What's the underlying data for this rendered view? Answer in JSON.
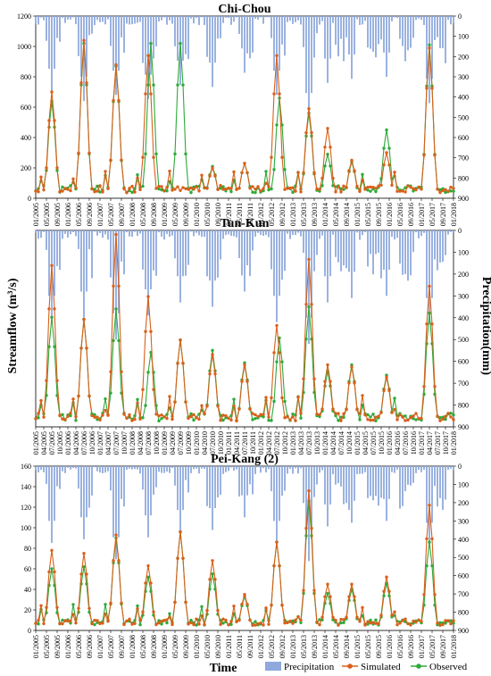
{
  "figure": {
    "ylabel_left": "Streamflow (m³/s)",
    "ylabel_right": "Precipitation(mm)",
    "xlabel": "Time",
    "legend": [
      {
        "name": "Precipitation",
        "type": "bar",
        "color": "#8fa9dc"
      },
      {
        "name": "Simulated",
        "type": "line",
        "color": "#d9601a"
      },
      {
        "name": "Observed",
        "type": "line",
        "color": "#2eaa3a"
      }
    ]
  },
  "chart_data": [
    {
      "type": "line",
      "title": "Chi-Chou",
      "ylim": [
        0,
        1200
      ],
      "yticks": [
        0,
        200,
        400,
        600,
        800,
        1000,
        1200
      ],
      "precip_ylim": [
        900,
        0
      ],
      "precip_ticks": [
        0,
        100,
        200,
        300,
        400,
        500,
        600,
        700,
        800,
        900
      ],
      "x_tick_labels": [
        "01/2005",
        "05/2005",
        "09/2005",
        "01/2006",
        "05/2006",
        "09/2006",
        "01/2007",
        "05/2007",
        "09/2007",
        "01/2008",
        "05/2008",
        "09/2008",
        "01/2009",
        "05/2009",
        "09/2009",
        "01/2010",
        "05/2010",
        "09/2010",
        "01/2011",
        "05/2011",
        "09/2011",
        "01/2012",
        "05/2012",
        "09/2012",
        "01/2013",
        "05/2013",
        "09/2013",
        "01/2014",
        "05/2014",
        "09/2014",
        "01/2015",
        "05/2015",
        "09/2015",
        "01/2016",
        "05/2016",
        "09/2016",
        "01/2017",
        "05/2017",
        "09/2017",
        "01/2018"
      ],
      "peaks": {
        "simulated": [
          [
            6,
            700
          ],
          [
            18,
            1040
          ],
          [
            30,
            880
          ],
          [
            42,
            940
          ],
          [
            55,
            70
          ],
          [
            66,
            200
          ],
          [
            78,
            230
          ],
          [
            90,
            940
          ],
          [
            102,
            590
          ],
          [
            109,
            460
          ],
          [
            118,
            250
          ],
          [
            131,
            300
          ],
          [
            147,
            990
          ]
        ],
        "observed": [
          [
            6,
            640
          ],
          [
            18,
            1020
          ],
          [
            30,
            870
          ],
          [
            43,
            1020
          ],
          [
            54,
            1020
          ],
          [
            66,
            210
          ],
          [
            78,
            230
          ],
          [
            91,
            660
          ],
          [
            102,
            560
          ],
          [
            109,
            290
          ],
          [
            118,
            240
          ],
          [
            131,
            450
          ],
          [
            147,
            1010
          ]
        ]
      },
      "precip_peaks": [
        [
          6,
          380
        ],
        [
          18,
          420
        ],
        [
          30,
          390
        ],
        [
          42,
          410
        ],
        [
          54,
          340
        ],
        [
          66,
          350
        ],
        [
          78,
          280
        ],
        [
          90,
          390
        ],
        [
          102,
          500
        ],
        [
          109,
          330
        ],
        [
          118,
          310
        ],
        [
          131,
          300
        ],
        [
          147,
          430
        ]
      ]
    },
    {
      "type": "line",
      "title": "Tun-Kun",
      "ylim": [
        0,
        95
      ],
      "yticks": [],
      "precip_ylim": [
        900,
        0
      ],
      "precip_ticks": [
        0,
        100,
        200,
        300,
        400,
        500,
        600,
        700,
        800,
        900
      ],
      "x_tick_labels": [
        "01/2005",
        "04/2005",
        "07/2005",
        "10/2005",
        "01/2006",
        "04/2006",
        "07/2006",
        "10/2006",
        "01/2007",
        "04/2007",
        "07/2007",
        "10/2007",
        "01/2008",
        "04/2008",
        "07/2008",
        "10/2008",
        "01/2009",
        "04/2009",
        "07/2009",
        "10/2009",
        "01/2010",
        "04/2010",
        "07/2010",
        "10/2010",
        "01/2011",
        "04/2011",
        "07/2011",
        "10/2011",
        "01/2012",
        "04/2012",
        "07/2012",
        "10/2012",
        "01/2013",
        "04/2013",
        "07/2013",
        "10/2013",
        "01/2014",
        "04/2014",
        "07/2014",
        "10/2014",
        "01/2015",
        "04/2015",
        "07/2015",
        "10/2015",
        "01/2016",
        "04/2016",
        "07/2016",
        "10/2016",
        "01/2017",
        "04/2017",
        "07/2017",
        "10/2017",
        "01/2018"
      ],
      "peaks": {
        "simulated": [
          [
            6,
            78
          ],
          [
            18,
            52
          ],
          [
            30,
            93
          ],
          [
            42,
            63
          ],
          [
            54,
            42
          ],
          [
            66,
            35
          ],
          [
            78,
            30
          ],
          [
            90,
            49
          ],
          [
            102,
            81
          ],
          [
            109,
            30
          ],
          [
            118,
            29
          ],
          [
            131,
            24
          ],
          [
            147,
            68
          ]
        ],
        "observed": [
          [
            6,
            53
          ],
          [
            18,
            52
          ],
          [
            30,
            57
          ],
          [
            43,
            36
          ],
          [
            54,
            42
          ],
          [
            66,
            37
          ],
          [
            78,
            31
          ],
          [
            91,
            43
          ],
          [
            102,
            58
          ],
          [
            109,
            27
          ],
          [
            118,
            30
          ],
          [
            131,
            25
          ],
          [
            147,
            55
          ]
        ]
      },
      "precip_peaks": [
        [
          6,
          420
        ],
        [
          18,
          400
        ],
        [
          30,
          500
        ],
        [
          42,
          390
        ],
        [
          54,
          330
        ],
        [
          66,
          350
        ],
        [
          78,
          280
        ],
        [
          90,
          420
        ],
        [
          102,
          520
        ],
        [
          109,
          330
        ],
        [
          118,
          310
        ],
        [
          131,
          300
        ],
        [
          147,
          430
        ]
      ]
    },
    {
      "type": "line",
      "title": "Pei-Kang (2)",
      "ylim": [
        0,
        160
      ],
      "yticks": [
        0,
        20,
        40,
        60,
        80,
        100,
        120,
        140,
        160
      ],
      "precip_ylim": [
        900,
        0
      ],
      "precip_ticks": [
        0,
        100,
        200,
        300,
        400,
        500,
        600,
        700,
        800,
        900
      ],
      "x_tick_labels": [
        "01/2005",
        "05/2005",
        "09/2005",
        "01/2006",
        "05/2006",
        "09/2006",
        "01/2007",
        "05/2007",
        "09/2007",
        "01/2008",
        "05/2008",
        "09/2008",
        "01/2009",
        "05/2009",
        "09/2009",
        "01/2010",
        "05/2010",
        "09/2010",
        "01/2011",
        "05/2011",
        "09/2011",
        "01/2012",
        "05/2012",
        "09/2012",
        "01/2013",
        "05/2013",
        "09/2013",
        "01/2014",
        "05/2014",
        "09/2014",
        "01/2015",
        "05/2015",
        "09/2015",
        "01/2016",
        "05/2016",
        "09/2016",
        "01/2017",
        "05/2017",
        "09/2017",
        "01/2018"
      ],
      "peaks": {
        "simulated": [
          [
            6,
            78
          ],
          [
            18,
            75
          ],
          [
            30,
            93
          ],
          [
            42,
            63
          ],
          [
            54,
            96
          ],
          [
            66,
            68
          ],
          [
            78,
            35
          ],
          [
            90,
            86
          ],
          [
            102,
            136
          ],
          [
            109,
            45
          ],
          [
            118,
            45
          ],
          [
            131,
            52
          ],
          [
            147,
            122
          ]
        ],
        "observed": [
          [
            6,
            60
          ],
          [
            18,
            62
          ],
          [
            30,
            90
          ],
          [
            42,
            52
          ],
          [
            54,
            96
          ],
          [
            66,
            55
          ],
          [
            78,
            33
          ],
          [
            90,
            86
          ],
          [
            102,
            126
          ],
          [
            109,
            36
          ],
          [
            118,
            40
          ],
          [
            131,
            46
          ],
          [
            147,
            86
          ]
        ]
      },
      "precip_peaks": [
        [
          6,
          420
        ],
        [
          18,
          400
        ],
        [
          30,
          510
        ],
        [
          42,
          390
        ],
        [
          54,
          360
        ],
        [
          66,
          350
        ],
        [
          78,
          280
        ],
        [
          90,
          420
        ],
        [
          102,
          520
        ],
        [
          109,
          330
        ],
        [
          118,
          310
        ],
        [
          131,
          300
        ],
        [
          147,
          430
        ]
      ]
    }
  ]
}
